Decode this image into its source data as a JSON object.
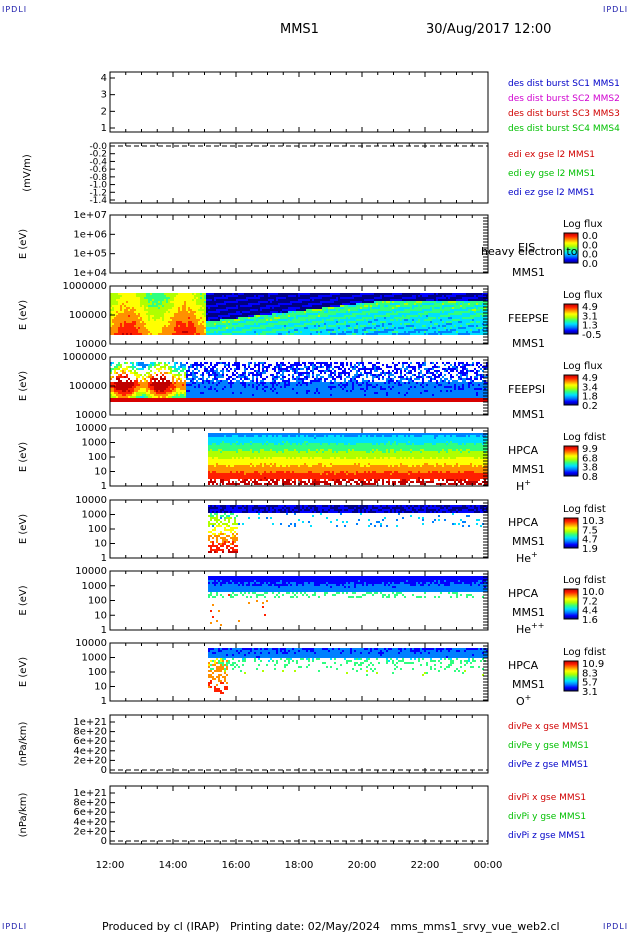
{
  "corner_label": "IPDLI",
  "header": {
    "spacecraft": "MMS1",
    "datetime": "30/Aug/2017 12:00"
  },
  "footer": {
    "text": "Produced by cl (IRAP)   Printing date: 02/May/2024   mms_mms1_srvy_vue_web2.cl"
  },
  "colors": {
    "mms1": "#0000c8",
    "mms2": "#d000d0",
    "mms3": "#d00000",
    "mms4": "#00c000",
    "x": "#d00000",
    "y": "#00c000",
    "z": "#0000c8"
  },
  "chart_data": [
    {
      "id": "p1",
      "type": "line",
      "ylabel": "",
      "yticks": [
        "1",
        "2",
        "3",
        "4"
      ],
      "ylim": [
        0.7,
        4.3
      ],
      "legend": [
        {
          "text": "des dist burst SC1 MMS1",
          "color": "#0000c8"
        },
        {
          "text": "des dist burst SC2 MMS2",
          "color": "#d000d0"
        },
        {
          "text": "des dist burst SC3 MMS3",
          "color": "#d00000"
        },
        {
          "text": "des dist burst SC4 MMS4",
          "color": "#00c000"
        }
      ],
      "series": []
    },
    {
      "id": "p2",
      "type": "line",
      "ylabel": "(mV/m)",
      "yticks": [
        "-0.0",
        "-0.2",
        "-0.4",
        "-0.6",
        "-0.8",
        "-1.0",
        "-1.2",
        "-1.4"
      ],
      "legend": [
        {
          "text": "edi ex gse l2 MMS1",
          "color": "#d00000"
        },
        {
          "text": "edi ey gse l2 MMS1",
          "color": "#00c000"
        },
        {
          "text": "edi ez gse l2 MMS1",
          "color": "#0000c8"
        }
      ],
      "series": []
    },
    {
      "id": "p3",
      "type": "heatmap",
      "ylabel": "E (eV)",
      "yticks": [
        "1e+04",
        "1e+05",
        "1e+06",
        "1e+07"
      ],
      "yscale": "log",
      "instrument": "EIS",
      "spacecraft": "MMS1",
      "overlay_text": "heavy electron to",
      "colorbar": {
        "title": "Log flux",
        "ticks": [
          "0.0",
          "0.0",
          "0.0",
          "0.0"
        ]
      }
    },
    {
      "id": "p4",
      "type": "heatmap",
      "ylabel": "E (eV)",
      "yticks": [
        "10000",
        "100000",
        "1000000"
      ],
      "yscale": "log",
      "instrument": "FEEPSE",
      "spacecraft": "MMS1",
      "colorbar": {
        "title": "Log flux",
        "ticks": [
          "4.9",
          "3.1",
          "1.3",
          "-0.5"
        ]
      }
    },
    {
      "id": "p5",
      "type": "heatmap",
      "ylabel": "E (eV)",
      "yticks": [
        "10000",
        "100000",
        "1000000"
      ],
      "yscale": "log",
      "instrument": "FEEPSI",
      "spacecraft": "MMS1",
      "colorbar": {
        "title": "Log flux",
        "ticks": [
          "4.9",
          "3.4",
          "1.8",
          "0.2"
        ]
      }
    },
    {
      "id": "p6",
      "type": "heatmap",
      "ylabel": "E (eV)",
      "yticks": [
        "1",
        "10",
        "100",
        "1000",
        "10000"
      ],
      "yscale": "log",
      "instrument": "HPCA",
      "spacecraft": "MMS1",
      "species": "H",
      "species_sup": "+",
      "colorbar": {
        "title": "Log fdist",
        "ticks": [
          "9.9",
          "6.8",
          "3.8",
          "0.8"
        ]
      }
    },
    {
      "id": "p7",
      "type": "heatmap",
      "ylabel": "E (eV)",
      "yticks": [
        "1",
        "10",
        "100",
        "1000",
        "10000"
      ],
      "yscale": "log",
      "instrument": "HPCA",
      "spacecraft": "MMS1",
      "species": "He",
      "species_sup": "+",
      "colorbar": {
        "title": "Log fdist",
        "ticks": [
          "10.3",
          "7.5",
          "4.7",
          "1.9"
        ]
      }
    },
    {
      "id": "p8",
      "type": "heatmap",
      "ylabel": "E (eV)",
      "yticks": [
        "1",
        "10",
        "100",
        "1000",
        "10000"
      ],
      "yscale": "log",
      "instrument": "HPCA",
      "spacecraft": "MMS1",
      "species": "He",
      "species_sup": "++",
      "colorbar": {
        "title": "Log fdist",
        "ticks": [
          "10.0",
          "7.2",
          "4.4",
          "1.6"
        ]
      }
    },
    {
      "id": "p9",
      "type": "heatmap",
      "ylabel": "E (eV)",
      "yticks": [
        "1",
        "10",
        "100",
        "1000",
        "10000"
      ],
      "yscale": "log",
      "instrument": "HPCA",
      "spacecraft": "MMS1",
      "species": "O",
      "species_sup": "+",
      "colorbar": {
        "title": "Log fdist",
        "ticks": [
          "10.9",
          "8.3",
          "5.7",
          "3.1"
        ]
      }
    },
    {
      "id": "p10",
      "type": "line",
      "ylabel": "(nPa/km)",
      "yticks": [
        "0",
        "2e+20",
        "4e+20",
        "6e+20",
        "8e+20",
        "1e+21"
      ],
      "legend": [
        {
          "text": "divPe x gse MMS1",
          "color": "#d00000"
        },
        {
          "text": "divPe y gse MMS1",
          "color": "#00c000"
        },
        {
          "text": "divPe z gse MMS1",
          "color": "#0000c8"
        }
      ],
      "series": []
    },
    {
      "id": "p11",
      "type": "line",
      "ylabel": "(nPa/km)",
      "yticks": [
        "0",
        "2e+20",
        "4e+20",
        "6e+20",
        "8e+20",
        "1e+21"
      ],
      "legend": [
        {
          "text": "divPi x gse MMS1",
          "color": "#d00000"
        },
        {
          "text": "divPi y gse MMS1",
          "color": "#00c000"
        },
        {
          "text": "divPi z gse MMS1",
          "color": "#0000c8"
        }
      ],
      "series": []
    }
  ],
  "time_axis": {
    "tick_labels": [
      "12:00",
      "14:00",
      "16:00",
      "18:00",
      "20:00",
      "22:00",
      "00:00"
    ],
    "range": [
      "12:00",
      "00:00"
    ]
  }
}
